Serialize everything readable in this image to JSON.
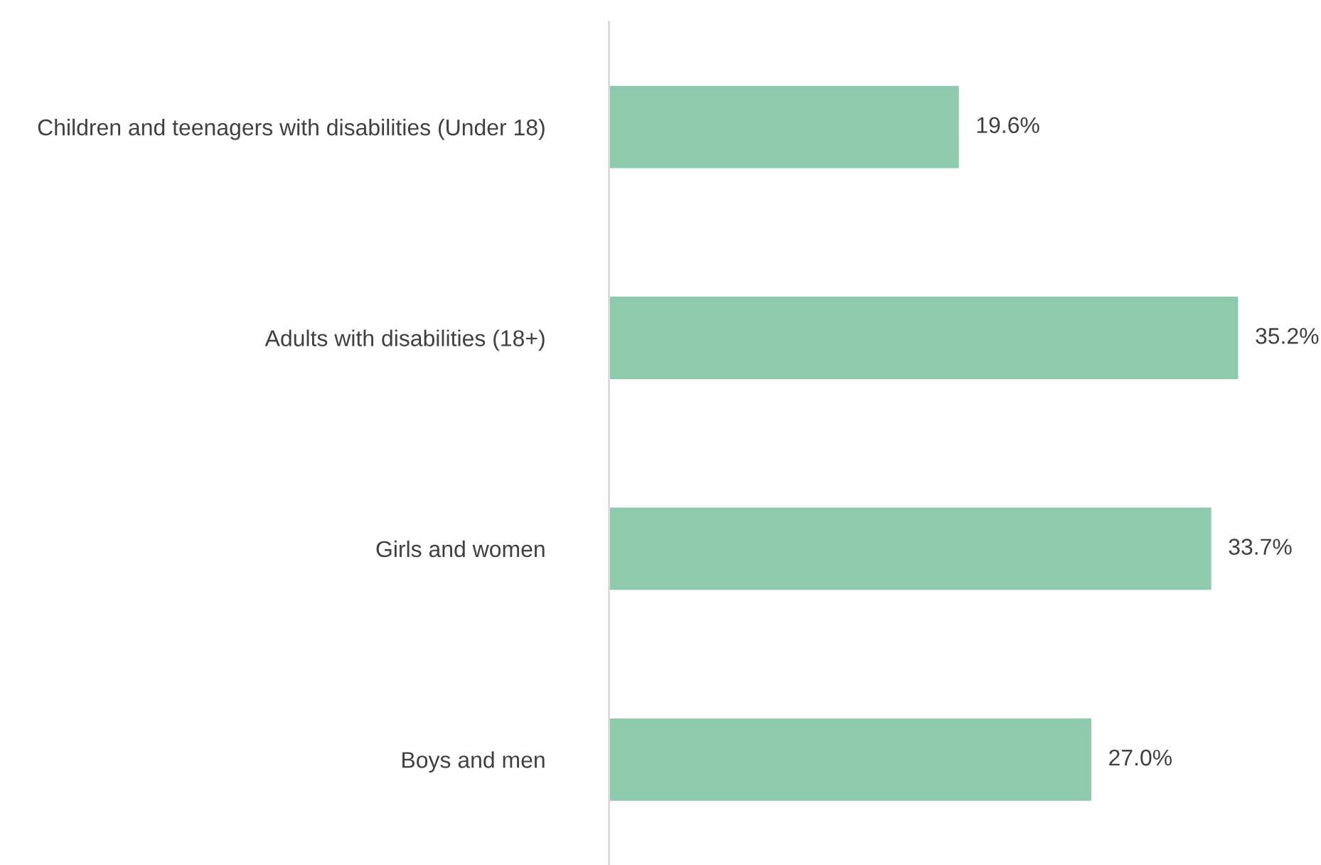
{
  "chart_data": {
    "type": "bar",
    "orientation": "horizontal",
    "categories": [
      "Children and teenagers with disabilities (Under 18)",
      "Adults with disabilities (18+)",
      "Girls and women",
      "Boys and men"
    ],
    "values": [
      19.6,
      35.2,
      33.7,
      27.0
    ],
    "value_labels": [
      "19.6%",
      "35.2%",
      "33.7%",
      "27.0%"
    ],
    "color": "#8ecbad"
  }
}
